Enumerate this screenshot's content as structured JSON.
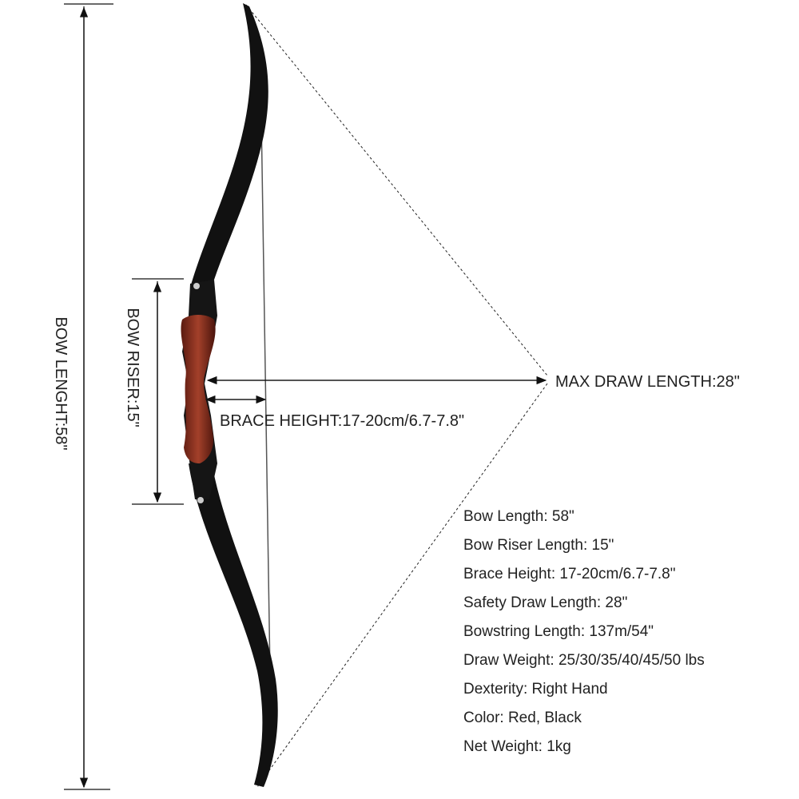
{
  "labels": {
    "bow_length": "BOW LENGHT:58\"",
    "bow_riser": "BOW RISER:15\"",
    "brace_height": "BRACE HEIGHT:17-20cm/6.7-7.8\"",
    "max_draw_length": "MAX DRAW LENGTH:28\""
  },
  "specs": [
    "Bow Length: 58\"",
    "Bow Riser Length: 15\"",
    "Brace Height: 17-20cm/6.7-7.8\"",
    "Safety Draw Length: 28\"",
    "Bowstring Length: 137m/54\"",
    "Draw Weight: 25/30/35/40/45/50 lbs",
    "Dexterity: Right Hand",
    "Color: Red, Black",
    "Net Weight: 1kg"
  ]
}
